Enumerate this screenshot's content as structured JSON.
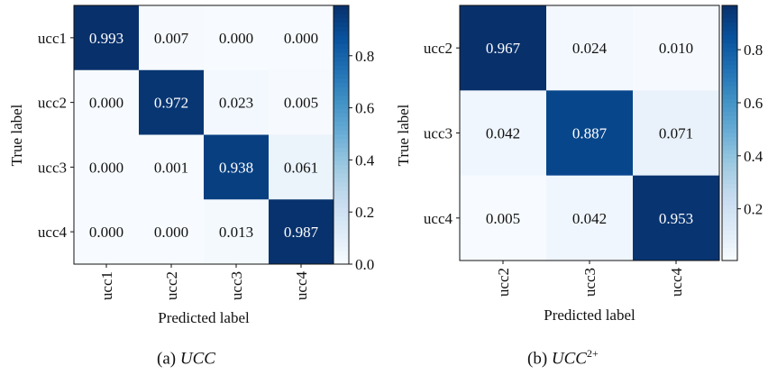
{
  "chart_data": [
    {
      "type": "heatmap",
      "xlabel": "Predicted label",
      "ylabel": "True label",
      "x_ticks": [
        "ucc1",
        "ucc2",
        "ucc3",
        "ucc4"
      ],
      "y_ticks": [
        "ucc1",
        "ucc2",
        "ucc3",
        "ucc4"
      ],
      "values": [
        [
          0.993,
          0.007,
          0.0,
          0.0
        ],
        [
          0.0,
          0.972,
          0.023,
          0.005
        ],
        [
          0.0,
          0.001,
          0.938,
          0.061
        ],
        [
          0.0,
          0.0,
          0.013,
          0.987
        ]
      ],
      "colormap": "Blues",
      "vmin": 0.0,
      "vmax": 0.993,
      "colorbar_ticks": [
        0.0,
        0.2,
        0.4,
        0.6,
        0.8
      ],
      "colorbar_tick_labels": [
        "0.0",
        "0.2",
        "0.4",
        "0.6",
        "0.8"
      ],
      "caption_tag": "(a)",
      "caption_name": "UCC",
      "caption_sup": ""
    },
    {
      "type": "heatmap",
      "xlabel": "Predicted label",
      "ylabel": "True label",
      "x_ticks": [
        "ucc2",
        "ucc3",
        "ucc4"
      ],
      "y_ticks": [
        "ucc2",
        "ucc3",
        "ucc4"
      ],
      "values": [
        [
          0.967,
          0.024,
          0.01
        ],
        [
          0.042,
          0.887,
          0.071
        ],
        [
          0.005,
          0.042,
          0.953
        ]
      ],
      "colormap": "Blues",
      "vmin": 0.005,
      "vmax": 0.967,
      "colorbar_ticks": [
        0.2,
        0.4,
        0.6,
        0.8
      ],
      "colorbar_tick_labels": [
        "0.2",
        "0.4",
        "0.6",
        "0.8"
      ],
      "caption_tag": "(b)",
      "caption_name": "UCC",
      "caption_sup": "2+"
    }
  ]
}
